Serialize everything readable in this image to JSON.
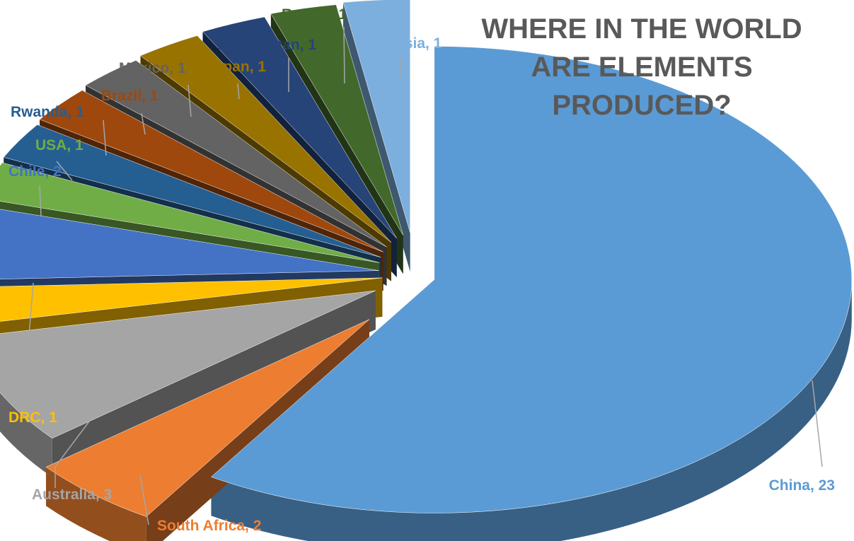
{
  "chart_data": {
    "type": "pie",
    "title": "WHERE IN THE WORLD ARE ELEMENTS PRODUCED?",
    "label_separator": ", ",
    "slices": [
      {
        "name": "China",
        "value": 23,
        "color": "#5B9BD5"
      },
      {
        "name": "South Africa",
        "value": 2,
        "color": "#ED7D31"
      },
      {
        "name": "Australia",
        "value": 3,
        "color": "#A5A5A5"
      },
      {
        "name": "DRC",
        "value": 1,
        "color": "#FFC000"
      },
      {
        "name": "Chile",
        "value": 2,
        "color": "#4472C4"
      },
      {
        "name": "USA",
        "value": 1,
        "color": "#70AD47"
      },
      {
        "name": "Rwanda",
        "value": 1,
        "color": "#255E91"
      },
      {
        "name": "Brazil",
        "value": 1,
        "color": "#9E480E"
      },
      {
        "name": "Mexico",
        "value": 1,
        "color": "#636363"
      },
      {
        "name": "Japan",
        "value": 1,
        "color": "#997300"
      },
      {
        "name": "Kazakhstan",
        "value": 1,
        "color": "#264478"
      },
      {
        "name": "Russia",
        "value": 1,
        "color": "#43682B"
      },
      {
        "name": "Indonesia",
        "value": 1,
        "color": "#7CAFDD"
      }
    ]
  }
}
